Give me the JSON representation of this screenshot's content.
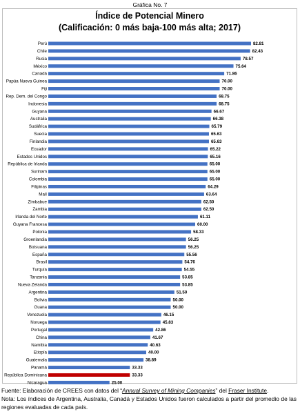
{
  "figure_label": "Gráfica No. 7",
  "colors": {
    "bar": "#4472c4",
    "highlight": "#c00000",
    "frame": "#bdbdbd"
  },
  "chart_data": {
    "type": "bar",
    "orientation": "horizontal",
    "title": "Índice de Potencial Minero",
    "subtitle": "(Calificación: 0 más baja-100 más alta; 2017)",
    "xlabel": "",
    "ylabel": "",
    "xlim": [
      0,
      100
    ],
    "grid": false,
    "legend": "none",
    "highlight_category": "República Dominicana",
    "categories": [
      "Perú",
      "Chile",
      "Rusia",
      "México",
      "Canadá",
      "Papúa Nueva Guinea",
      "Fiji",
      "Rep. Dem. del Congo",
      "Indonesia",
      "Guyana",
      "Australia",
      "Sudáfrica",
      "Suecia",
      "Finlandia",
      "Ecuador",
      "Estados Unidos",
      "República de Irlanda",
      "Surinam",
      "Colombia",
      "Filipinas",
      "Malí",
      "Zimbabue",
      "Zambia",
      "Irlanda del Norte",
      "Guyana Francesa",
      "Polonia",
      "Groenlandia",
      "Botsuana",
      "España",
      "Brasil",
      "Turquía",
      "Tanzania",
      "Nueva Zelanda",
      "Argentina",
      "Bolivia",
      "Guana",
      "Venezuela",
      "Noruega",
      "Portugal",
      "China",
      "Namibia",
      "Etiopía",
      "Guatemala",
      "Panamá",
      "República Dominicana",
      "Nicaragua"
    ],
    "values": [
      82.81,
      82.43,
      78.57,
      75.64,
      71.86,
      70.0,
      70.0,
      68.75,
      68.75,
      66.67,
      66.38,
      65.79,
      65.63,
      65.63,
      65.22,
      65.16,
      65.0,
      65.0,
      65.0,
      64.29,
      63.64,
      62.5,
      62.5,
      61.11,
      60.0,
      58.33,
      56.25,
      56.25,
      55.56,
      54.76,
      54.55,
      53.85,
      53.85,
      51.5,
      50.0,
      50.0,
      46.15,
      45.83,
      42.86,
      41.67,
      40.63,
      40.0,
      38.89,
      33.33,
      33.33,
      25.0
    ],
    "value_labels": [
      "82.81",
      "82.43",
      "78.57",
      "75.64",
      "71.86",
      "70.00",
      "70.00",
      "68.75",
      "68.75",
      "66.67",
      "66.38",
      "65.79",
      "65.63",
      "65.63",
      "65.22",
      "65.16",
      "65.00",
      "65.00",
      "65.00",
      "64.29",
      "63.64",
      "62.50",
      "62.50",
      "61.11",
      "60.00",
      "58.33",
      "56.25",
      "56.25",
      "55.56",
      "54.76",
      "54.55",
      "53.85",
      "53.85",
      "51.50",
      "50.00",
      "50.00",
      "46.15",
      "45.83",
      "42.86",
      "41.67",
      "40.63",
      "40.00",
      "38.89",
      "33.33",
      "33.33",
      "25.00"
    ]
  },
  "notes": {
    "source_prefix": "Fuente: Elaboración de CREES con datos del “",
    "source_title": "Annual Survey of Mining Companies",
    "source_mid": "” del ",
    "source_org": "Fraser Institute",
    "source_suffix": ".",
    "note": "Nota: Los índices de Argentina, Australia, Canadá y Estados Unidos fueron calculados a partir del promedio de las regiones evaluadas de cada país."
  }
}
